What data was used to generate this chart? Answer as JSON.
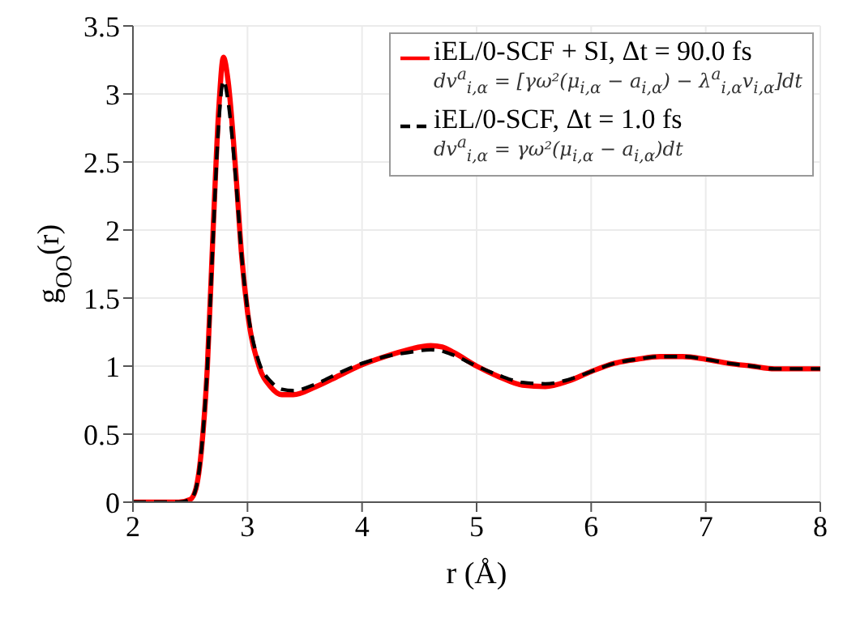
{
  "chart_data": {
    "type": "line",
    "xlabel": "r (Å)",
    "ylabel": "g$_{OO}$(r)",
    "x": [
      2.0,
      2.4,
      2.5,
      2.55,
      2.6,
      2.65,
      2.7,
      2.75,
      2.79,
      2.83,
      2.9,
      2.95,
      3.0,
      3.1,
      3.2,
      3.3,
      3.4,
      3.6,
      3.8,
      4.0,
      4.2,
      4.4,
      4.6,
      4.7,
      4.8,
      5.0,
      5.2,
      5.4,
      5.6,
      5.8,
      6.0,
      6.2,
      6.4,
      6.6,
      6.8,
      7.0,
      7.2,
      7.4,
      7.6,
      8.0
    ],
    "series": [
      {
        "name": "iEL/0-SCF + SI, Δt = 90.0 fs",
        "color": "#ff0000",
        "line_style": "solid",
        "values": [
          0,
          0,
          0.02,
          0.1,
          0.4,
          1.0,
          2.0,
          2.9,
          3.27,
          3.1,
          2.4,
          1.8,
          1.4,
          1.0,
          0.85,
          0.79,
          0.79,
          0.85,
          0.93,
          1.01,
          1.07,
          1.12,
          1.15,
          1.14,
          1.1,
          1.0,
          0.92,
          0.86,
          0.85,
          0.89,
          0.96,
          1.02,
          1.05,
          1.07,
          1.07,
          1.05,
          1.02,
          1.0,
          0.98,
          0.98
        ]
      },
      {
        "name": "iEL/0-SCF, Δt = 1.0 fs",
        "color": "#000000",
        "line_style": "dashed",
        "values": [
          0,
          0,
          0.02,
          0.1,
          0.4,
          1.0,
          1.95,
          2.8,
          3.1,
          2.95,
          2.35,
          1.8,
          1.42,
          1.03,
          0.89,
          0.83,
          0.82,
          0.87,
          0.95,
          1.02,
          1.07,
          1.1,
          1.12,
          1.11,
          1.08,
          1.0,
          0.93,
          0.88,
          0.87,
          0.9,
          0.96,
          1.02,
          1.05,
          1.07,
          1.07,
          1.05,
          1.02,
          1.0,
          0.98,
          0.98
        ]
      }
    ],
    "annotations": [
      "dv$^{a}$$_{i,α}$ = [γω²(μ$_{i,α}$ − a$_{i,α}$) − λ$^{a}$$_{i,α}$v$_{i,α}$]dt",
      "dv$^{a}$$_{i,α}$ = γω²(μ$_{i,α}$ − a$_{i,α}$)dt"
    ],
    "xlim": [
      2,
      8
    ],
    "xticks": [
      2,
      3,
      4,
      5,
      6,
      7,
      8
    ],
    "ylim": [
      0,
      3.5
    ],
    "yticks": [
      0,
      0.5,
      1,
      1.5,
      2,
      2.5,
      3,
      3.5
    ],
    "grid": true,
    "legend": "top right",
    "marker": "none"
  }
}
